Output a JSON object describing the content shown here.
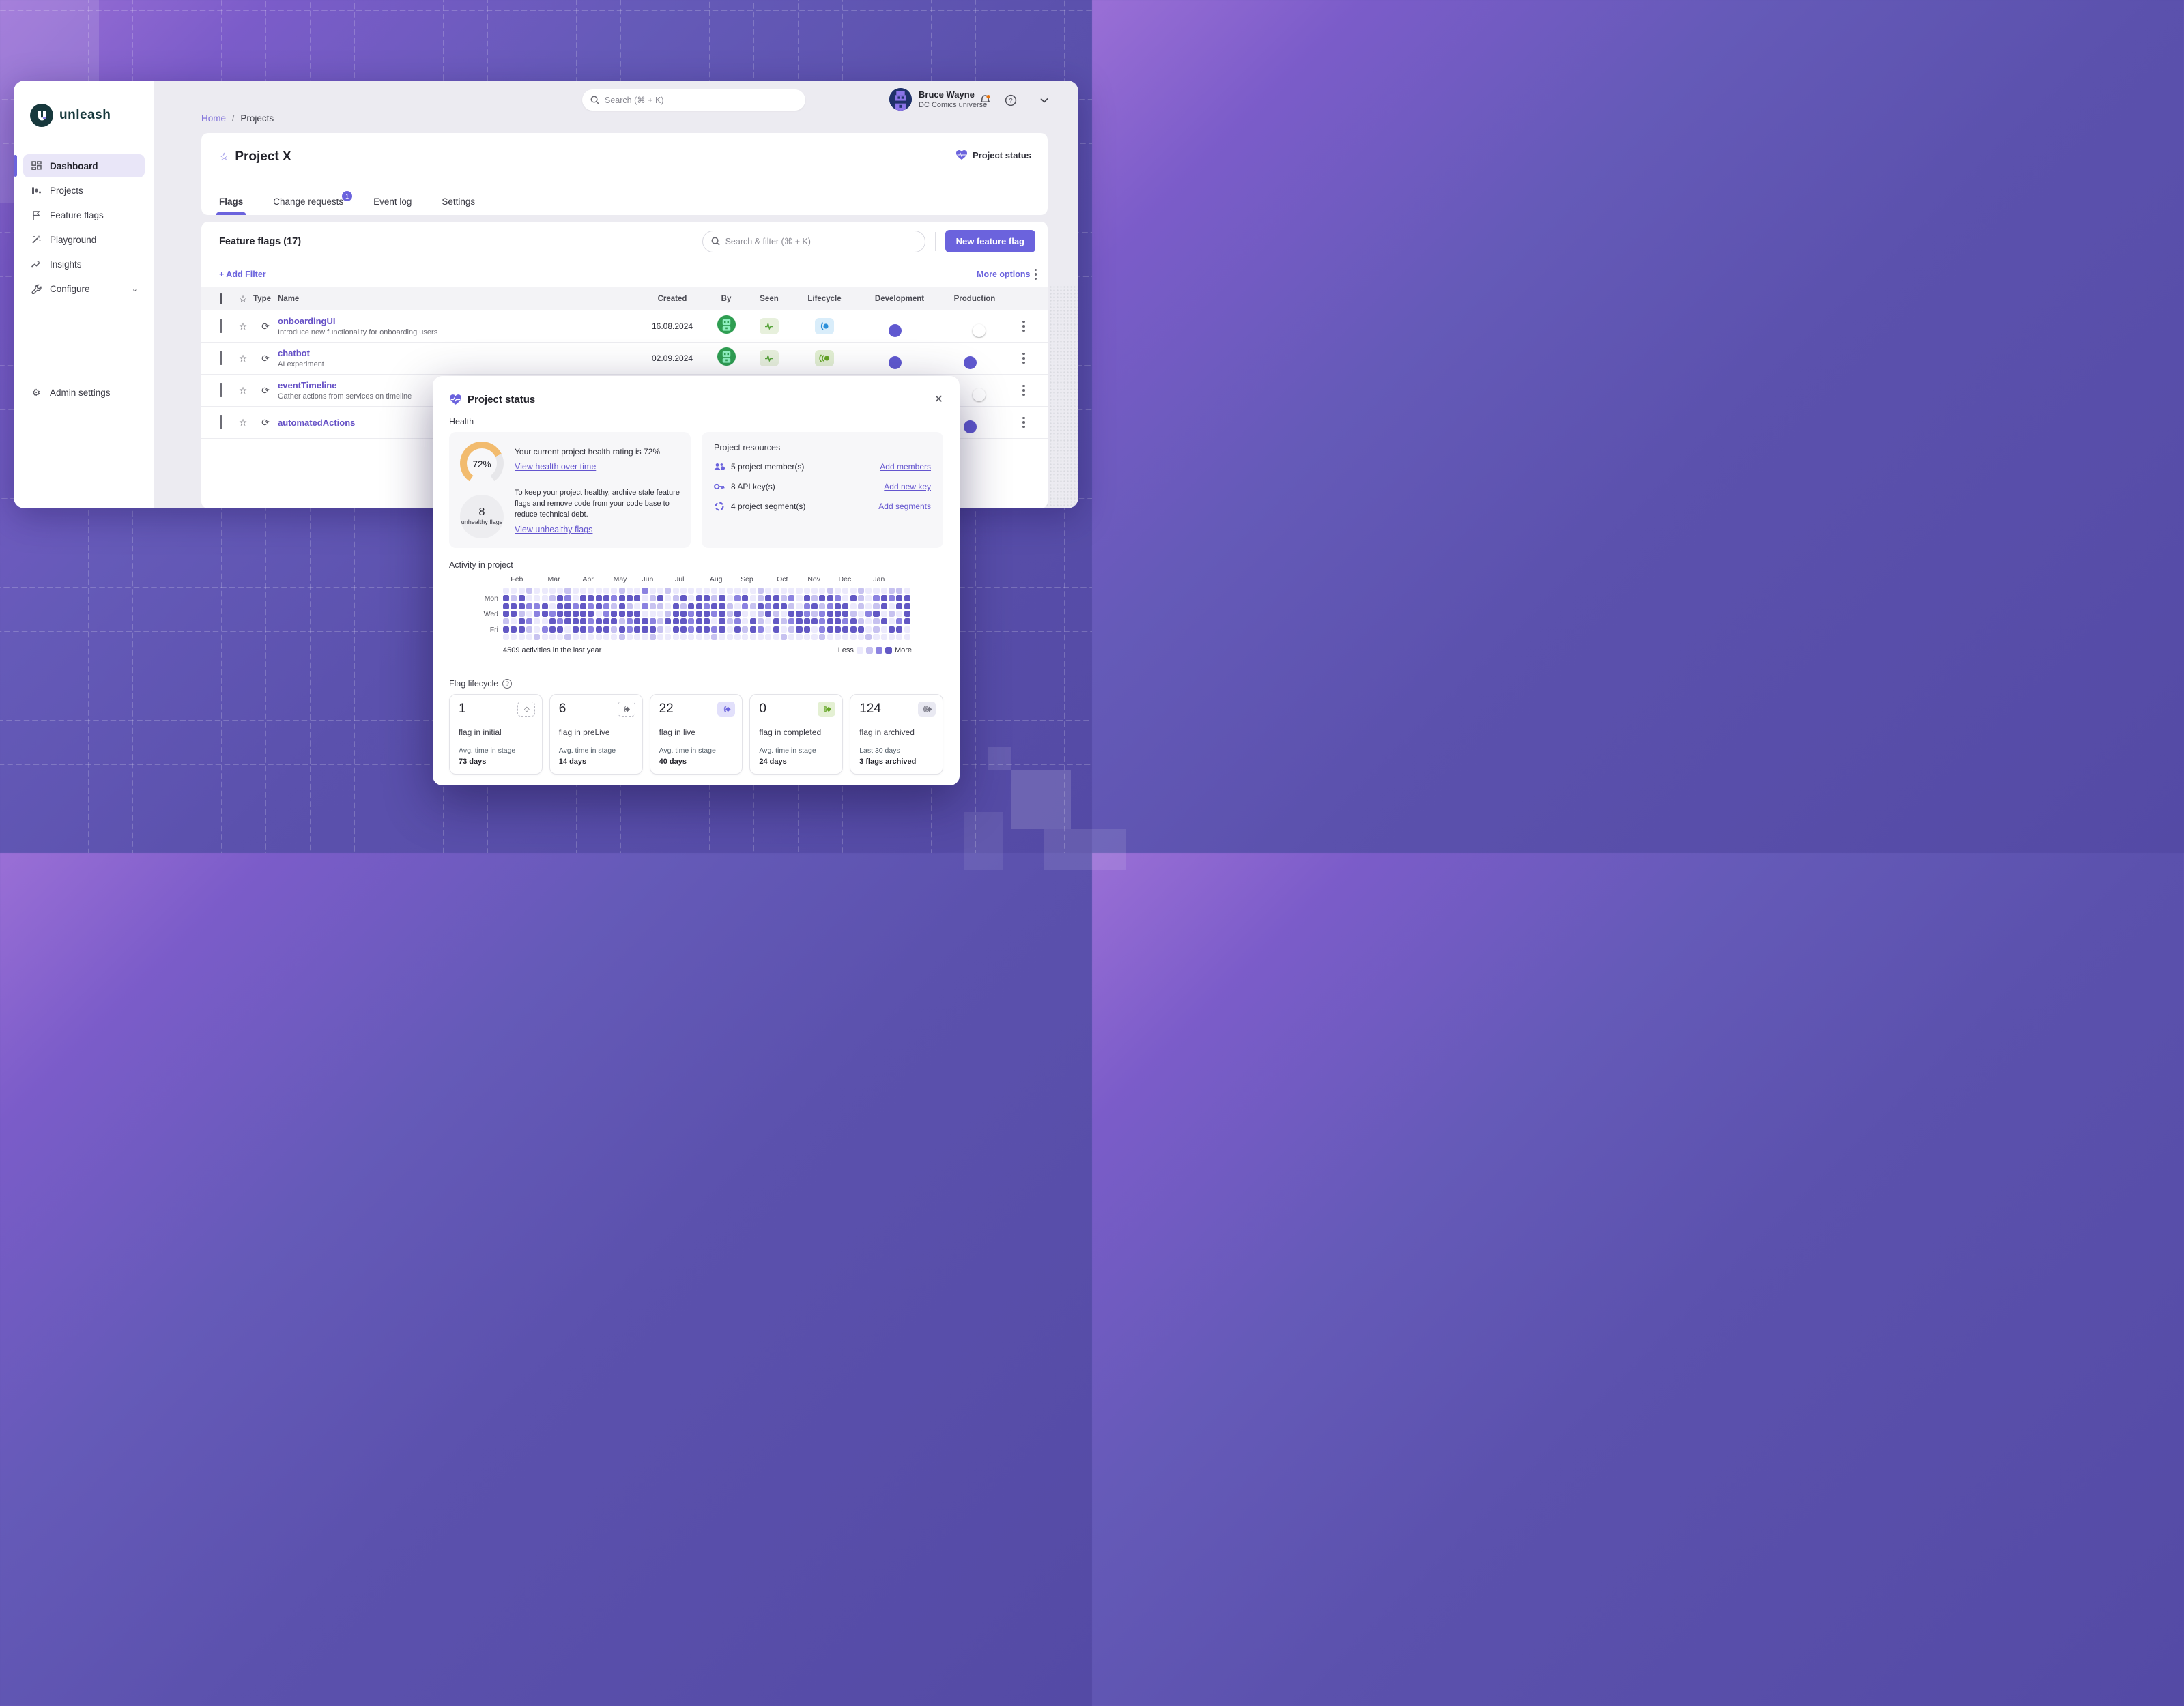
{
  "colors": {
    "accent": "#6b63dd",
    "heat_levels": [
      "#eceafc",
      "#c7c2f0",
      "#8b82e0",
      "#6258c4"
    ],
    "gauge_orange": "#f2bb6e",
    "seen_green": "#56a339",
    "lifecycle_blue": "#2b8fd9",
    "lifecycle_green": "#63a524"
  },
  "sidebar": {
    "logo_text": "unleash",
    "items": [
      {
        "label": "Dashboard",
        "icon": "dashboard-icon",
        "active": true
      },
      {
        "label": "Projects",
        "icon": "projects-icon",
        "active": false
      },
      {
        "label": "Feature flags",
        "icon": "flag-icon",
        "active": false
      },
      {
        "label": "Playground",
        "icon": "wand-icon",
        "active": false
      },
      {
        "label": "Insights",
        "icon": "insights-icon",
        "active": false
      },
      {
        "label": "Configure",
        "icon": "wrench-icon",
        "active": false,
        "chevron": "⌄"
      }
    ],
    "admin": {
      "label": "Admin settings",
      "icon": "gear-icon"
    }
  },
  "topbar": {
    "search_placeholder": "Search (⌘ + K)",
    "user": {
      "name": "Bruce Wayne",
      "org": "DC Comics universe"
    }
  },
  "breadcrumb": {
    "home": "Home",
    "sep": "/",
    "current": "Projects"
  },
  "project": {
    "title": "Project X",
    "star_icon": "☆",
    "status_button": "Project status",
    "tabs": [
      {
        "label": "Flags",
        "active": true
      },
      {
        "label": "Change requests",
        "active": false,
        "badge": "1"
      },
      {
        "label": "Event log",
        "active": false
      },
      {
        "label": "Settings",
        "active": false
      }
    ]
  },
  "flags_panel": {
    "title": "Feature flags (17)",
    "search_placeholder": "Search & filter (⌘ + K)",
    "new_button": "New feature flag",
    "add_filter": "+ Add Filter",
    "more_options": "More options",
    "columns": {
      "type": "Type",
      "name": "Name",
      "created": "Created",
      "by": "By",
      "seen": "Seen",
      "lifecycle": "Lifecycle",
      "development": "Development",
      "production": "Production"
    },
    "rows": [
      {
        "name": "onboardingUI",
        "desc": "Introduce new functionality for onboarding users",
        "created": "16.08.2024",
        "by": true,
        "seen": true,
        "lifecycle": "live-blue",
        "dev": "on",
        "prod": "off"
      },
      {
        "name": "chatbot",
        "desc": "AI experiment",
        "created": "02.09.2024",
        "by": true,
        "seen": true,
        "lifecycle": "completed-green",
        "dev": "on",
        "prod": "on"
      },
      {
        "name": "eventTimeline",
        "desc": "Gather actions from services on timeline",
        "created": "",
        "by": false,
        "seen": false,
        "lifecycle": "",
        "dev": "",
        "prod": "off"
      },
      {
        "name": "automatedActions",
        "desc": "",
        "created": "",
        "by": false,
        "seen": false,
        "lifecycle": "",
        "dev": "",
        "prod": "on"
      }
    ]
  },
  "modal": {
    "title": "Project status",
    "close_icon": "✕",
    "health_label": "Health",
    "health": {
      "percent": "72%",
      "rating_text": "Your current project health rating is 72%",
      "link_over_time": "View health over time",
      "unhealthy_count": "8",
      "unhealthy_label": "unhealthy flags",
      "tip": "To keep your project healthy, archive stale feature flags and remove code from your code base to reduce technical debt.",
      "link_unhealthy": "View unhealthy flags"
    },
    "resources": {
      "title": "Project resources",
      "items": [
        {
          "icon": "users-icon",
          "text": "5 project member(s)",
          "link": "Add members"
        },
        {
          "icon": "key-icon",
          "text": "8 API key(s)",
          "link": "Add new key"
        },
        {
          "icon": "segments-icon",
          "text": "4 project segment(s)",
          "link": "Add segments"
        }
      ]
    },
    "activity": {
      "title": "Activity in project",
      "total": "4509 activities in the last year",
      "legend_less": "Less",
      "legend_more": "More",
      "months": [
        {
          "label": "Feb",
          "col": 1
        },
        {
          "label": "Mar",
          "col": 5.8
        },
        {
          "label": "Apr",
          "col": 10.3
        },
        {
          "label": "May",
          "col": 14.3
        },
        {
          "label": "Jun",
          "col": 18
        },
        {
          "label": "Jul",
          "col": 22.3
        },
        {
          "label": "Aug",
          "col": 26.8
        },
        {
          "label": "Sep",
          "col": 30.8
        },
        {
          "label": "Oct",
          "col": 35.5
        },
        {
          "label": "Nov",
          "col": 39.5
        },
        {
          "label": "Dec",
          "col": 43.5
        },
        {
          "label": "Jan",
          "col": 48
        }
      ],
      "day_labels": [
        {
          "label": "Mon",
          "row": 1
        },
        {
          "label": "Wed",
          "row": 3
        },
        {
          "label": "Fri",
          "row": 5
        }
      ],
      "grid": [
        "00010000100000010020010000000000010000000010001000110",
        "31300013203333233301301303313023013312031332031023233",
        "33322303323232131021103133233102132331023123301013033",
        "33102323333302333300013323323130013103321233310230103",
        "10320032333233312332133323303120310312333233231013023",
        "33310233033233132333103323323031320301330233333010330",
        "00001000100000010001000000010000000010000100000100000"
      ]
    },
    "lifecycle": {
      "title": "Flag lifecycle",
      "help_icon": "?",
      "cards": [
        {
          "count": "1",
          "label": "flag in initial",
          "sub": "Avg. time in stage",
          "value": "73 days",
          "icon": "initial",
          "glyph": "◇"
        },
        {
          "count": "6",
          "label": "flag in preLive",
          "sub": "Avg. time in stage",
          "value": "14 days",
          "icon": "prelive",
          "glyph": "(◆"
        },
        {
          "count": "22",
          "label": "flag in live",
          "sub": "Avg. time in stage",
          "value": "40 days",
          "icon": "live",
          "glyph": "((◆"
        },
        {
          "count": "0",
          "label": "flag in completed",
          "sub": "Avg. time in stage",
          "value": "24 days",
          "icon": "completed",
          "glyph": "(((◆"
        },
        {
          "count": "124",
          "label": "flag in archived",
          "sub": "Last 30 days",
          "value": "3 flags archived",
          "icon": "archived",
          "glyph": "((((◆"
        }
      ]
    }
  }
}
